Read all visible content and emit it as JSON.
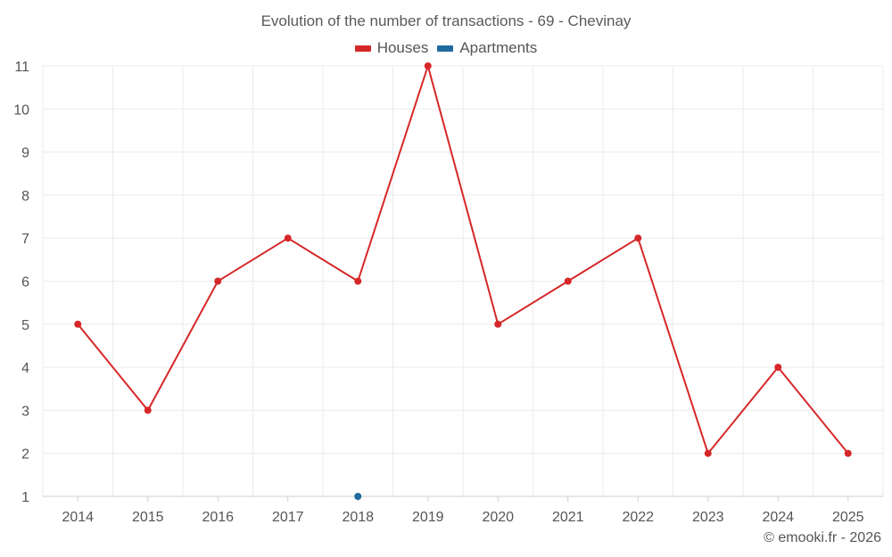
{
  "chart_data": {
    "type": "line",
    "title": "Evolution of the number of transactions - 69 - Chevinay",
    "xlabel": "",
    "ylabel": "",
    "categories": [
      "2014",
      "2015",
      "2016",
      "2017",
      "2018",
      "2019",
      "2020",
      "2021",
      "2022",
      "2023",
      "2024",
      "2025"
    ],
    "ylim": [
      1,
      11
    ],
    "yticks": [
      1,
      2,
      3,
      4,
      5,
      6,
      7,
      8,
      9,
      10,
      11
    ],
    "grid": true,
    "legend_position": "top-center",
    "series": [
      {
        "name": "Houses",
        "color": "#d62728",
        "values": [
          5,
          3,
          6,
          7,
          6,
          11,
          5,
          6,
          7,
          2,
          4,
          2
        ]
      },
      {
        "name": "Apartments",
        "color": "#1f6b9e",
        "values": [
          null,
          null,
          null,
          null,
          1,
          null,
          null,
          null,
          null,
          null,
          null,
          null
        ]
      }
    ]
  },
  "credit": "© emooki.fr - 2026"
}
